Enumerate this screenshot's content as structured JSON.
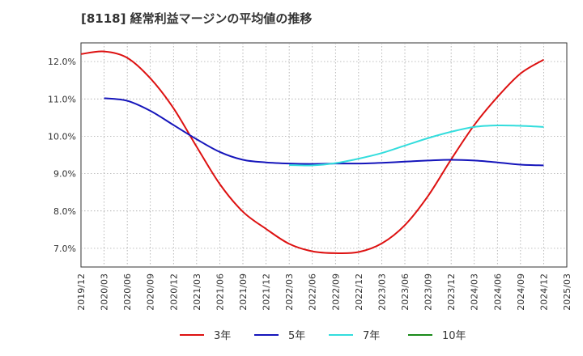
{
  "chart_data": {
    "type": "line",
    "title": "[8118]  経常利益マージンの平均値の推移",
    "xlabel": "",
    "ylabel": "",
    "x": [
      "2019/12",
      "2020/03",
      "2020/06",
      "2020/09",
      "2020/12",
      "2021/03",
      "2021/06",
      "2021/09",
      "2021/12",
      "2022/03",
      "2022/06",
      "2022/09",
      "2022/12",
      "2023/03",
      "2023/06",
      "2023/09",
      "2023/12",
      "2024/03",
      "2024/06",
      "2024/09",
      "2024/12",
      "2025/03"
    ],
    "ylim": [
      6.5,
      12.5
    ],
    "yticks": [
      7.0,
      8.0,
      9.0,
      10.0,
      11.0,
      12.0
    ],
    "ytick_labels": [
      "7.0%",
      "8.0%",
      "9.0%",
      "10.0%",
      "11.0%",
      "12.0%"
    ],
    "grid": true,
    "legend_position": "bottom",
    "series": [
      {
        "name": "3年",
        "color": "#dd1111",
        "values": [
          12.2,
          12.27,
          12.1,
          11.55,
          10.75,
          9.72,
          8.72,
          7.98,
          7.52,
          7.12,
          6.92,
          6.87,
          6.9,
          7.13,
          7.62,
          8.4,
          9.38,
          10.3,
          11.05,
          11.68,
          12.05,
          null
        ]
      },
      {
        "name": "5年",
        "color": "#1515bb",
        "values": [
          null,
          11.02,
          10.95,
          10.68,
          10.3,
          9.92,
          9.58,
          9.37,
          9.3,
          9.27,
          9.26,
          9.27,
          9.27,
          9.29,
          9.32,
          9.35,
          9.37,
          9.35,
          9.3,
          9.24,
          9.22,
          null
        ]
      },
      {
        "name": "7年",
        "color": "#33dddd",
        "values": [
          null,
          null,
          null,
          null,
          null,
          null,
          null,
          null,
          null,
          9.23,
          9.22,
          9.28,
          9.4,
          9.55,
          9.75,
          9.95,
          10.12,
          10.25,
          10.29,
          10.28,
          10.25,
          null
        ]
      },
      {
        "name": "10年",
        "color": "#1a8a1a",
        "values": [
          null,
          null,
          null,
          null,
          null,
          null,
          null,
          null,
          null,
          null,
          null,
          null,
          null,
          null,
          null,
          null,
          null,
          null,
          null,
          null,
          null,
          null
        ]
      }
    ]
  }
}
